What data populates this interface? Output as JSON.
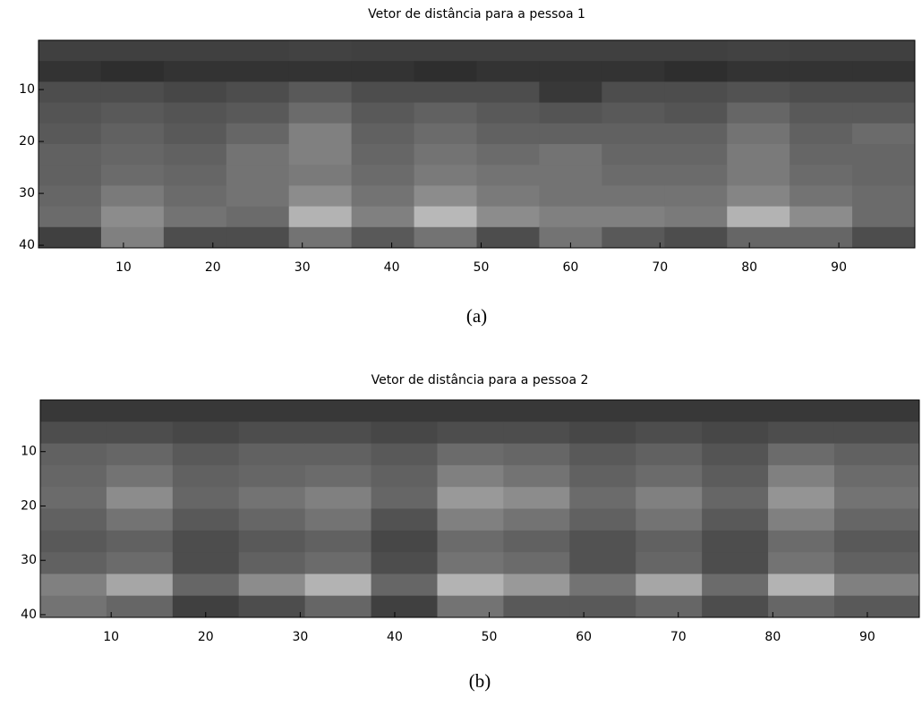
{
  "chart_data": [
    {
      "type": "heatmap",
      "title": "Vetor de distância para a pessoa 1",
      "caption": "(a)",
      "colormap": "gray",
      "clim": [
        0,
        1
      ],
      "y_reversed": true,
      "xlim": [
        0.5,
        98.5
      ],
      "ylim": [
        0.5,
        40.5
      ],
      "xticks": [
        10,
        20,
        30,
        40,
        50,
        60,
        70,
        80,
        90
      ],
      "yticks": [
        10,
        20,
        30,
        40
      ],
      "xbins": [
        0.5,
        7.5,
        14.5,
        21.5,
        28.5,
        35.5,
        42.5,
        49.5,
        56.5,
        63.5,
        70.5,
        77.5,
        84.5,
        91.5,
        98.5
      ],
      "ybins": [
        0.5,
        4.5,
        8.5,
        12.5,
        16.5,
        20.5,
        24.5,
        28.5,
        32.5,
        36.5,
        40.5
      ],
      "values": [
        [
          0.25,
          0.25,
          0.25,
          0.25,
          0.26,
          0.25,
          0.25,
          0.25,
          0.25,
          0.25,
          0.25,
          0.26,
          0.25,
          0.25
        ],
        [
          0.2,
          0.18,
          0.2,
          0.2,
          0.2,
          0.2,
          0.18,
          0.2,
          0.2,
          0.2,
          0.18,
          0.2,
          0.2,
          0.2
        ],
        [
          0.3,
          0.3,
          0.28,
          0.3,
          0.35,
          0.3,
          0.3,
          0.3,
          0.22,
          0.3,
          0.3,
          0.32,
          0.3,
          0.3
        ],
        [
          0.33,
          0.35,
          0.33,
          0.35,
          0.42,
          0.35,
          0.38,
          0.35,
          0.33,
          0.35,
          0.33,
          0.4,
          0.35,
          0.35
        ],
        [
          0.35,
          0.38,
          0.35,
          0.4,
          0.5,
          0.38,
          0.42,
          0.38,
          0.38,
          0.38,
          0.38,
          0.45,
          0.38,
          0.42
        ],
        [
          0.38,
          0.4,
          0.38,
          0.45,
          0.5,
          0.4,
          0.45,
          0.42,
          0.45,
          0.4,
          0.4,
          0.48,
          0.4,
          0.4
        ],
        [
          0.38,
          0.42,
          0.4,
          0.45,
          0.48,
          0.42,
          0.48,
          0.45,
          0.45,
          0.42,
          0.42,
          0.48,
          0.42,
          0.4
        ],
        [
          0.4,
          0.48,
          0.42,
          0.45,
          0.55,
          0.45,
          0.55,
          0.48,
          0.45,
          0.45,
          0.45,
          0.52,
          0.45,
          0.42
        ],
        [
          0.42,
          0.55,
          0.45,
          0.42,
          0.7,
          0.5,
          0.72,
          0.55,
          0.5,
          0.5,
          0.48,
          0.7,
          0.55,
          0.42
        ],
        [
          0.25,
          0.5,
          0.3,
          0.3,
          0.45,
          0.35,
          0.45,
          0.3,
          0.45,
          0.35,
          0.3,
          0.4,
          0.4,
          0.3
        ]
      ]
    },
    {
      "type": "heatmap",
      "title": "Vetor de distância para a pessoa 2",
      "caption": "(b)",
      "colormap": "gray",
      "clim": [
        0,
        1
      ],
      "y_reversed": true,
      "xlim": [
        2.5,
        95.5
      ],
      "ylim": [
        0.5,
        40.5
      ],
      "xticks": [
        10,
        20,
        30,
        40,
        50,
        60,
        70,
        80,
        90
      ],
      "yticks": [
        10,
        20,
        30,
        40
      ],
      "xbins": [
        2.5,
        9.5,
        16.5,
        23.5,
        30.5,
        37.5,
        44.5,
        51.5,
        58.5,
        65.5,
        72.5,
        79.5,
        86.5,
        95.5
      ],
      "ybins": [
        0.5,
        4.5,
        8.5,
        12.5,
        16.5,
        20.5,
        24.5,
        28.5,
        32.5,
        36.5,
        40.5
      ],
      "values": [
        [
          0.22,
          0.22,
          0.22,
          0.22,
          0.22,
          0.22,
          0.22,
          0.22,
          0.22,
          0.22,
          0.22,
          0.22,
          0.22
        ],
        [
          0.3,
          0.3,
          0.28,
          0.3,
          0.3,
          0.28,
          0.3,
          0.3,
          0.28,
          0.3,
          0.28,
          0.3,
          0.3
        ],
        [
          0.38,
          0.4,
          0.35,
          0.38,
          0.38,
          0.35,
          0.42,
          0.4,
          0.35,
          0.38,
          0.33,
          0.42,
          0.38
        ],
        [
          0.4,
          0.45,
          0.38,
          0.4,
          0.42,
          0.38,
          0.5,
          0.45,
          0.38,
          0.42,
          0.36,
          0.5,
          0.42
        ],
        [
          0.42,
          0.55,
          0.4,
          0.45,
          0.5,
          0.4,
          0.6,
          0.55,
          0.42,
          0.5,
          0.4,
          0.58,
          0.45
        ],
        [
          0.38,
          0.45,
          0.35,
          0.4,
          0.45,
          0.32,
          0.5,
          0.45,
          0.38,
          0.45,
          0.35,
          0.5,
          0.4
        ],
        [
          0.35,
          0.38,
          0.3,
          0.35,
          0.38,
          0.28,
          0.42,
          0.38,
          0.32,
          0.38,
          0.3,
          0.42,
          0.35
        ],
        [
          0.38,
          0.42,
          0.3,
          0.38,
          0.42,
          0.3,
          0.45,
          0.42,
          0.32,
          0.4,
          0.3,
          0.45,
          0.38
        ],
        [
          0.5,
          0.65,
          0.4,
          0.55,
          0.7,
          0.4,
          0.7,
          0.6,
          0.45,
          0.65,
          0.42,
          0.7,
          0.5
        ],
        [
          0.45,
          0.4,
          0.25,
          0.3,
          0.4,
          0.25,
          0.45,
          0.35,
          0.35,
          0.4,
          0.3,
          0.4,
          0.35
        ]
      ]
    }
  ]
}
